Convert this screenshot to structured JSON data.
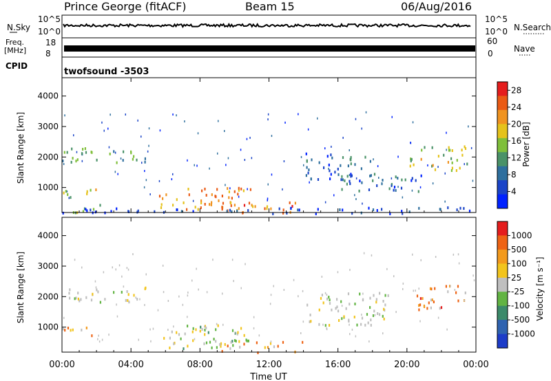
{
  "header": {
    "station": "Prince George (fitACF)",
    "beam": "Beam 15",
    "date": "06/Aug/2016"
  },
  "top_panel": {
    "left_label_1": "N.Sky",
    "left_label_2": "Freq.",
    "left_label_3": "[MHz]",
    "left_label_4": "CPID",
    "right_label_1": "N.Search",
    "right_label_2": "Nave",
    "sky_ticks": [
      "10^5",
      "10^0"
    ],
    "search_ticks": [
      "10^5",
      "10^0"
    ],
    "freq_ticks": [
      "18",
      "8"
    ],
    "nave_ticks": [
      "60",
      "0"
    ],
    "cpid_text": "twofsound -3503"
  },
  "chart_data": [
    {
      "type": "heatmap",
      "title": "",
      "xlabel": "Time UT",
      "ylabel": "Slant Range [km]",
      "x_ticks": [
        "00:00",
        "04:00",
        "08:00",
        "12:00",
        "16:00",
        "20:00",
        "00:00"
      ],
      "x_range_hours": [
        0,
        24
      ],
      "y_ticks": [
        "1000",
        "2000",
        "3000",
        "4000"
      ],
      "ylim": [
        180,
        4600
      ],
      "colorbar": {
        "label": "Power [dB]",
        "ticks": [
          "4",
          "8",
          "12",
          "16",
          "20",
          "24",
          "28"
        ],
        "range": [
          0,
          30
        ],
        "colors": [
          "#0022ff",
          "#1a44c8",
          "#2e6f9e",
          "#4a9268",
          "#7fbf3a",
          "#e5c21b",
          "#f09320",
          "#ea5a14",
          "#e51d1d"
        ]
      },
      "scatter_regions": [
        {
          "t0": 0.0,
          "t1": 5.0,
          "r0": 1850,
          "r1": 2350,
          "level": 0.35
        },
        {
          "t0": 0.0,
          "t1": 2.0,
          "r0": 700,
          "r1": 1050,
          "level": 0.55
        },
        {
          "t0": 0.5,
          "t1": 2.5,
          "r0": 200,
          "r1": 500,
          "level": 0.5
        },
        {
          "t0": 5.5,
          "t1": 11.0,
          "r0": 300,
          "r1": 1100,
          "level": 0.75
        },
        {
          "t0": 9.0,
          "t1": 14.0,
          "r0": 200,
          "r1": 550,
          "level": 0.8
        },
        {
          "t0": 0.0,
          "t1": 24.0,
          "r0": 180,
          "r1": 380,
          "level": 0.1
        },
        {
          "t0": 14.0,
          "t1": 18.0,
          "r0": 1300,
          "r1": 2200,
          "level": 0.2
        },
        {
          "t0": 16.0,
          "t1": 21.0,
          "r0": 900,
          "r1": 1500,
          "level": 0.2
        },
        {
          "t0": 20.0,
          "t1": 23.5,
          "r0": 1600,
          "r1": 2400,
          "level": 0.55
        }
      ]
    },
    {
      "type": "heatmap",
      "title": "",
      "xlabel": "Time UT",
      "ylabel": "Slant Range [km]",
      "x_ticks": [
        "00:00",
        "04:00",
        "08:00",
        "12:00",
        "16:00",
        "20:00",
        "00:00"
      ],
      "x_range_hours": [
        0,
        24
      ],
      "y_ticks": [
        "1000",
        "2000",
        "3000",
        "4000"
      ],
      "ylim": [
        180,
        4600
      ],
      "colorbar": {
        "label": "Velocity [m s⁻¹]",
        "ticks": [
          "1000",
          "500",
          "100",
          "25",
          "-25",
          "-100",
          "-500",
          "-1000"
        ],
        "range": [
          -1000,
          1000
        ],
        "colors": [
          "#1d3cc8",
          "#2f63b0",
          "#3c8a6a",
          "#62b443",
          "#bfbfbf",
          "#f2c41d",
          "#f39a1d",
          "#ee6314",
          "#e51d1d"
        ]
      },
      "scatter_regions": [
        {
          "t0": 0.0,
          "t1": 5.0,
          "r0": 1850,
          "r1": 2350,
          "vel": "gray"
        },
        {
          "t0": 0.0,
          "t1": 2.0,
          "r0": 700,
          "r1": 1050,
          "vel": "orange"
        },
        {
          "t0": 5.5,
          "t1": 11.0,
          "r0": 300,
          "r1": 1100,
          "vel": "green"
        },
        {
          "t0": 9.0,
          "t1": 14.0,
          "r0": 200,
          "r1": 550,
          "vel": "orange"
        },
        {
          "t0": 14.0,
          "t1": 19.0,
          "r0": 1100,
          "r1": 2200,
          "vel": "gray"
        },
        {
          "t0": 20.5,
          "t1": 23.5,
          "r0": 1600,
          "r1": 2400,
          "vel": "red"
        }
      ]
    }
  ]
}
